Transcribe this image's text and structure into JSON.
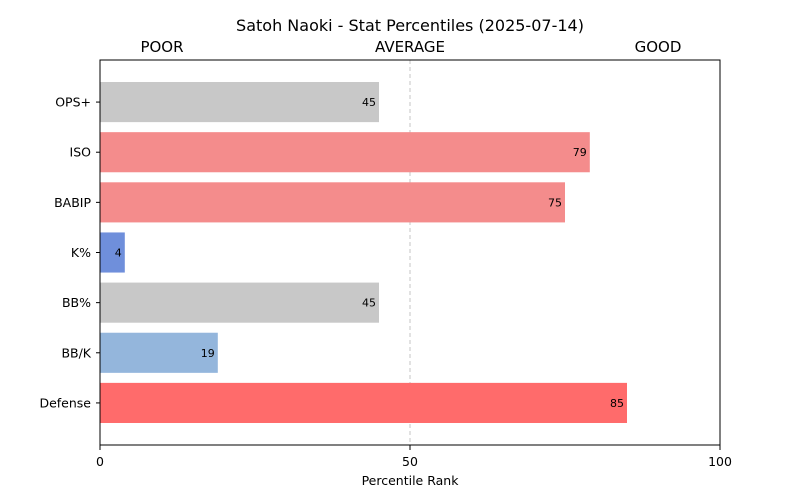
{
  "chart_data": {
    "type": "bar",
    "orientation": "horizontal",
    "title": "Satoh Naoki - Stat Percentiles (2025-07-14)",
    "band_labels": [
      "POOR",
      "AVERAGE",
      "GOOD"
    ],
    "xlabel": "Percentile Rank",
    "ylabel": "",
    "xlim": [
      0,
      100
    ],
    "xticks": [
      0,
      50,
      100
    ],
    "reference_line": 50,
    "grid": false,
    "categories": [
      "OPS+",
      "ISO",
      "BABIP",
      "K%",
      "BB%",
      "BB/K",
      "Defense"
    ],
    "values": [
      45,
      79,
      75,
      4,
      45,
      19,
      85
    ],
    "colors": [
      "#c8c8c8",
      "#f48c8c",
      "#f48c8c",
      "#6f8fdb",
      "#c8c8c8",
      "#94b6dc",
      "#ff6b6b"
    ]
  }
}
